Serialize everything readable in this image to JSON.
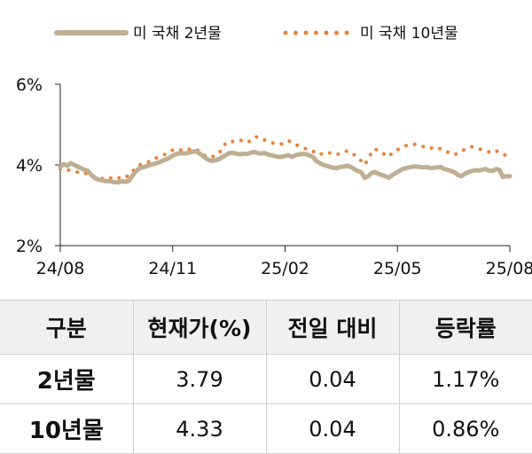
{
  "chart_data": {
    "type": "line",
    "x_ticks": [
      "24/08",
      "24/11",
      "25/02",
      "25/05",
      "25/08"
    ],
    "y_ticks": [
      "2%",
      "4%",
      "6%"
    ],
    "ylim": [
      2,
      6
    ],
    "legend_position": "top",
    "grid": false,
    "series": [
      {
        "name": "미 국채 2년물",
        "color": "#bfae92",
        "style": "solid",
        "values": [
          3.95,
          4.02,
          3.98,
          4.04,
          4.0,
          3.96,
          3.92,
          3.88,
          3.85,
          3.75,
          3.67,
          3.64,
          3.62,
          3.6,
          3.6,
          3.58,
          3.57,
          3.57,
          3.6,
          3.58,
          3.62,
          3.75,
          3.85,
          3.92,
          3.94,
          3.97,
          4.0,
          4.02,
          4.05,
          4.08,
          4.12,
          4.15,
          4.2,
          4.25,
          4.28,
          4.3,
          4.28,
          4.3,
          4.32,
          4.34,
          4.3,
          4.24,
          4.17,
          4.12,
          4.1,
          4.12,
          4.15,
          4.2,
          4.25,
          4.3,
          4.3,
          4.28,
          4.26,
          4.28,
          4.27,
          4.3,
          4.32,
          4.3,
          4.28,
          4.3,
          4.26,
          4.24,
          4.22,
          4.2,
          4.2,
          4.22,
          4.24,
          4.2,
          4.24,
          4.26,
          4.27,
          4.27,
          4.24,
          4.2,
          4.1,
          4.05,
          4.0,
          3.98,
          3.95,
          3.93,
          3.92,
          3.95,
          3.96,
          3.98,
          3.95,
          3.9,
          3.85,
          3.82,
          3.68,
          3.72,
          3.8,
          3.82,
          3.78,
          3.75,
          3.72,
          3.68,
          3.75,
          3.8,
          3.85,
          3.9,
          3.92,
          3.94,
          3.96,
          3.96,
          3.95,
          3.94,
          3.95,
          3.92,
          3.93,
          3.94,
          3.95,
          3.9,
          3.88,
          3.85,
          3.82,
          3.75,
          3.72,
          3.78,
          3.82,
          3.85,
          3.87,
          3.86,
          3.88,
          3.9,
          3.86,
          3.85,
          3.9,
          3.88,
          3.7,
          3.72,
          3.72
        ]
      },
      {
        "name": "미 국채 10년물",
        "color": "#ed7d31",
        "style": "dotted",
        "values": [
          3.9,
          3.92,
          3.88,
          3.86,
          3.84,
          3.82,
          3.8,
          3.78,
          3.8,
          3.75,
          3.7,
          3.68,
          3.66,
          3.68,
          3.7,
          3.65,
          3.64,
          3.68,
          3.72,
          3.7,
          3.75,
          3.85,
          3.95,
          4.0,
          4.02,
          4.05,
          4.1,
          4.15,
          4.18,
          4.22,
          4.25,
          4.3,
          4.35,
          4.38,
          4.4,
          4.36,
          4.35,
          4.38,
          4.4,
          4.4,
          4.35,
          4.28,
          4.22,
          4.18,
          4.2,
          4.25,
          4.3,
          4.45,
          4.55,
          4.6,
          4.58,
          4.6,
          4.62,
          4.58,
          4.55,
          4.6,
          4.68,
          4.7,
          4.66,
          4.62,
          4.6,
          4.56,
          4.52,
          4.5,
          4.52,
          4.56,
          4.6,
          4.55,
          4.5,
          4.48,
          4.45,
          4.4,
          4.38,
          4.35,
          4.28,
          4.25,
          4.3,
          4.28,
          4.3,
          4.28,
          4.25,
          4.3,
          4.32,
          4.35,
          4.3,
          4.25,
          4.2,
          4.1,
          4.0,
          4.15,
          4.3,
          4.4,
          4.35,
          4.3,
          4.25,
          4.2,
          4.3,
          4.35,
          4.4,
          4.45,
          4.48,
          4.5,
          4.52,
          4.5,
          4.48,
          4.45,
          4.42,
          4.4,
          4.45,
          4.42,
          4.4,
          4.38,
          4.32,
          4.3,
          4.25,
          4.3,
          4.35,
          4.38,
          4.4,
          4.45,
          4.42,
          4.4,
          4.38,
          4.35,
          4.32,
          4.3,
          4.35,
          4.32,
          4.28,
          4.22,
          4.2
        ]
      }
    ]
  },
  "table": {
    "headers": [
      "구분",
      "현재가(%)",
      "전일 대비",
      "등락률"
    ],
    "rows": [
      [
        "2년물",
        "3.79",
        "0.04",
        "1.17%"
      ],
      [
        "10년물",
        "4.33",
        "0.04",
        "0.86%"
      ]
    ]
  }
}
